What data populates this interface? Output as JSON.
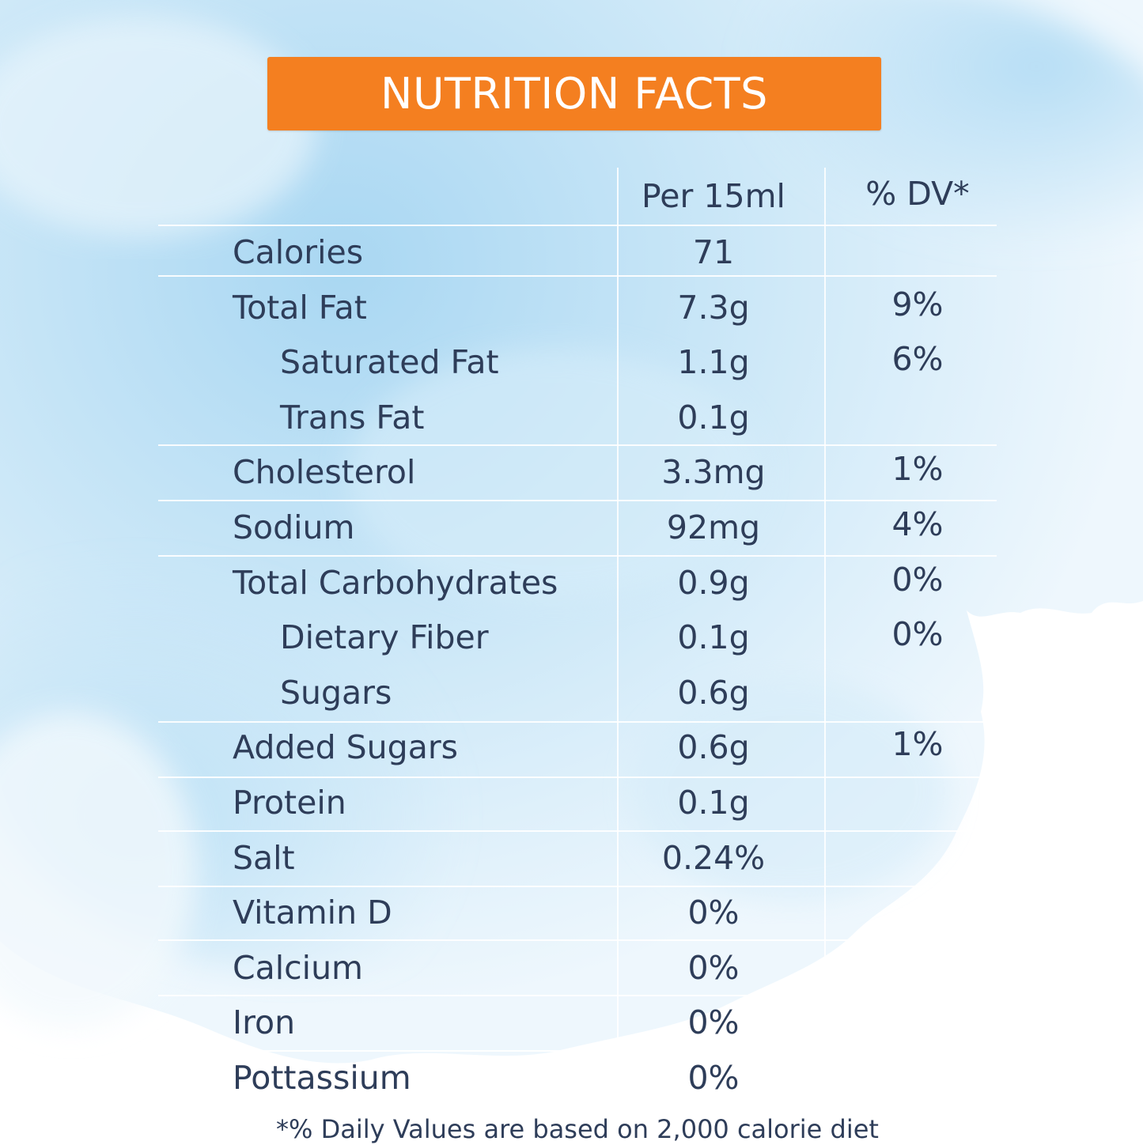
{
  "title": "NUTRITION FACTS",
  "header": {
    "per": "Per 15ml",
    "dv": "% DV*"
  },
  "rows": [
    {
      "name": "Calories",
      "per": "71",
      "dv": "",
      "indent": false
    },
    {
      "name": "Total Fat",
      "per": "7.3g",
      "dv": "9%",
      "indent": false
    },
    {
      "name": "Saturated Fat",
      "per": "1.1g",
      "dv": "6%",
      "indent": true
    },
    {
      "name": "Trans Fat",
      "per": "0.1g",
      "dv": "",
      "indent": true
    },
    {
      "name": "Cholesterol",
      "per": "3.3mg",
      "dv": "1%",
      "indent": false
    },
    {
      "name": "Sodium",
      "per": "92mg",
      "dv": "4%",
      "indent": false
    },
    {
      "name": "Total Carbohydrates",
      "per": "0.9g",
      "dv": "0%",
      "indent": false
    },
    {
      "name": "Dietary Fiber",
      "per": "0.1g",
      "dv": "0%",
      "indent": true
    },
    {
      "name": "Sugars",
      "per": "0.6g",
      "dv": "",
      "indent": true
    },
    {
      "name": "Added Sugars",
      "per": "0.6g",
      "dv": "1%",
      "indent": false
    },
    {
      "name": "Protein",
      "per": "0.1g",
      "dv": "",
      "indent": false
    },
    {
      "name": "Salt",
      "per": "0.24%",
      "dv": "",
      "indent": false
    },
    {
      "name": "Vitamin D",
      "per": "0%",
      "dv": "",
      "indent": false
    },
    {
      "name": "Calcium",
      "per": "0%",
      "dv": "",
      "indent": false
    },
    {
      "name": "Iron",
      "per": "0%",
      "dv": "",
      "indent": false
    },
    {
      "name": "Pottassium",
      "per": "0%",
      "dv": "",
      "indent": false
    }
  ],
  "footnote": "*% Daily Values are based on 2,000 calorie diet",
  "colors": {
    "banner": "#f47f20",
    "text": "#2e3d59",
    "sky": "#c9e6f7"
  }
}
